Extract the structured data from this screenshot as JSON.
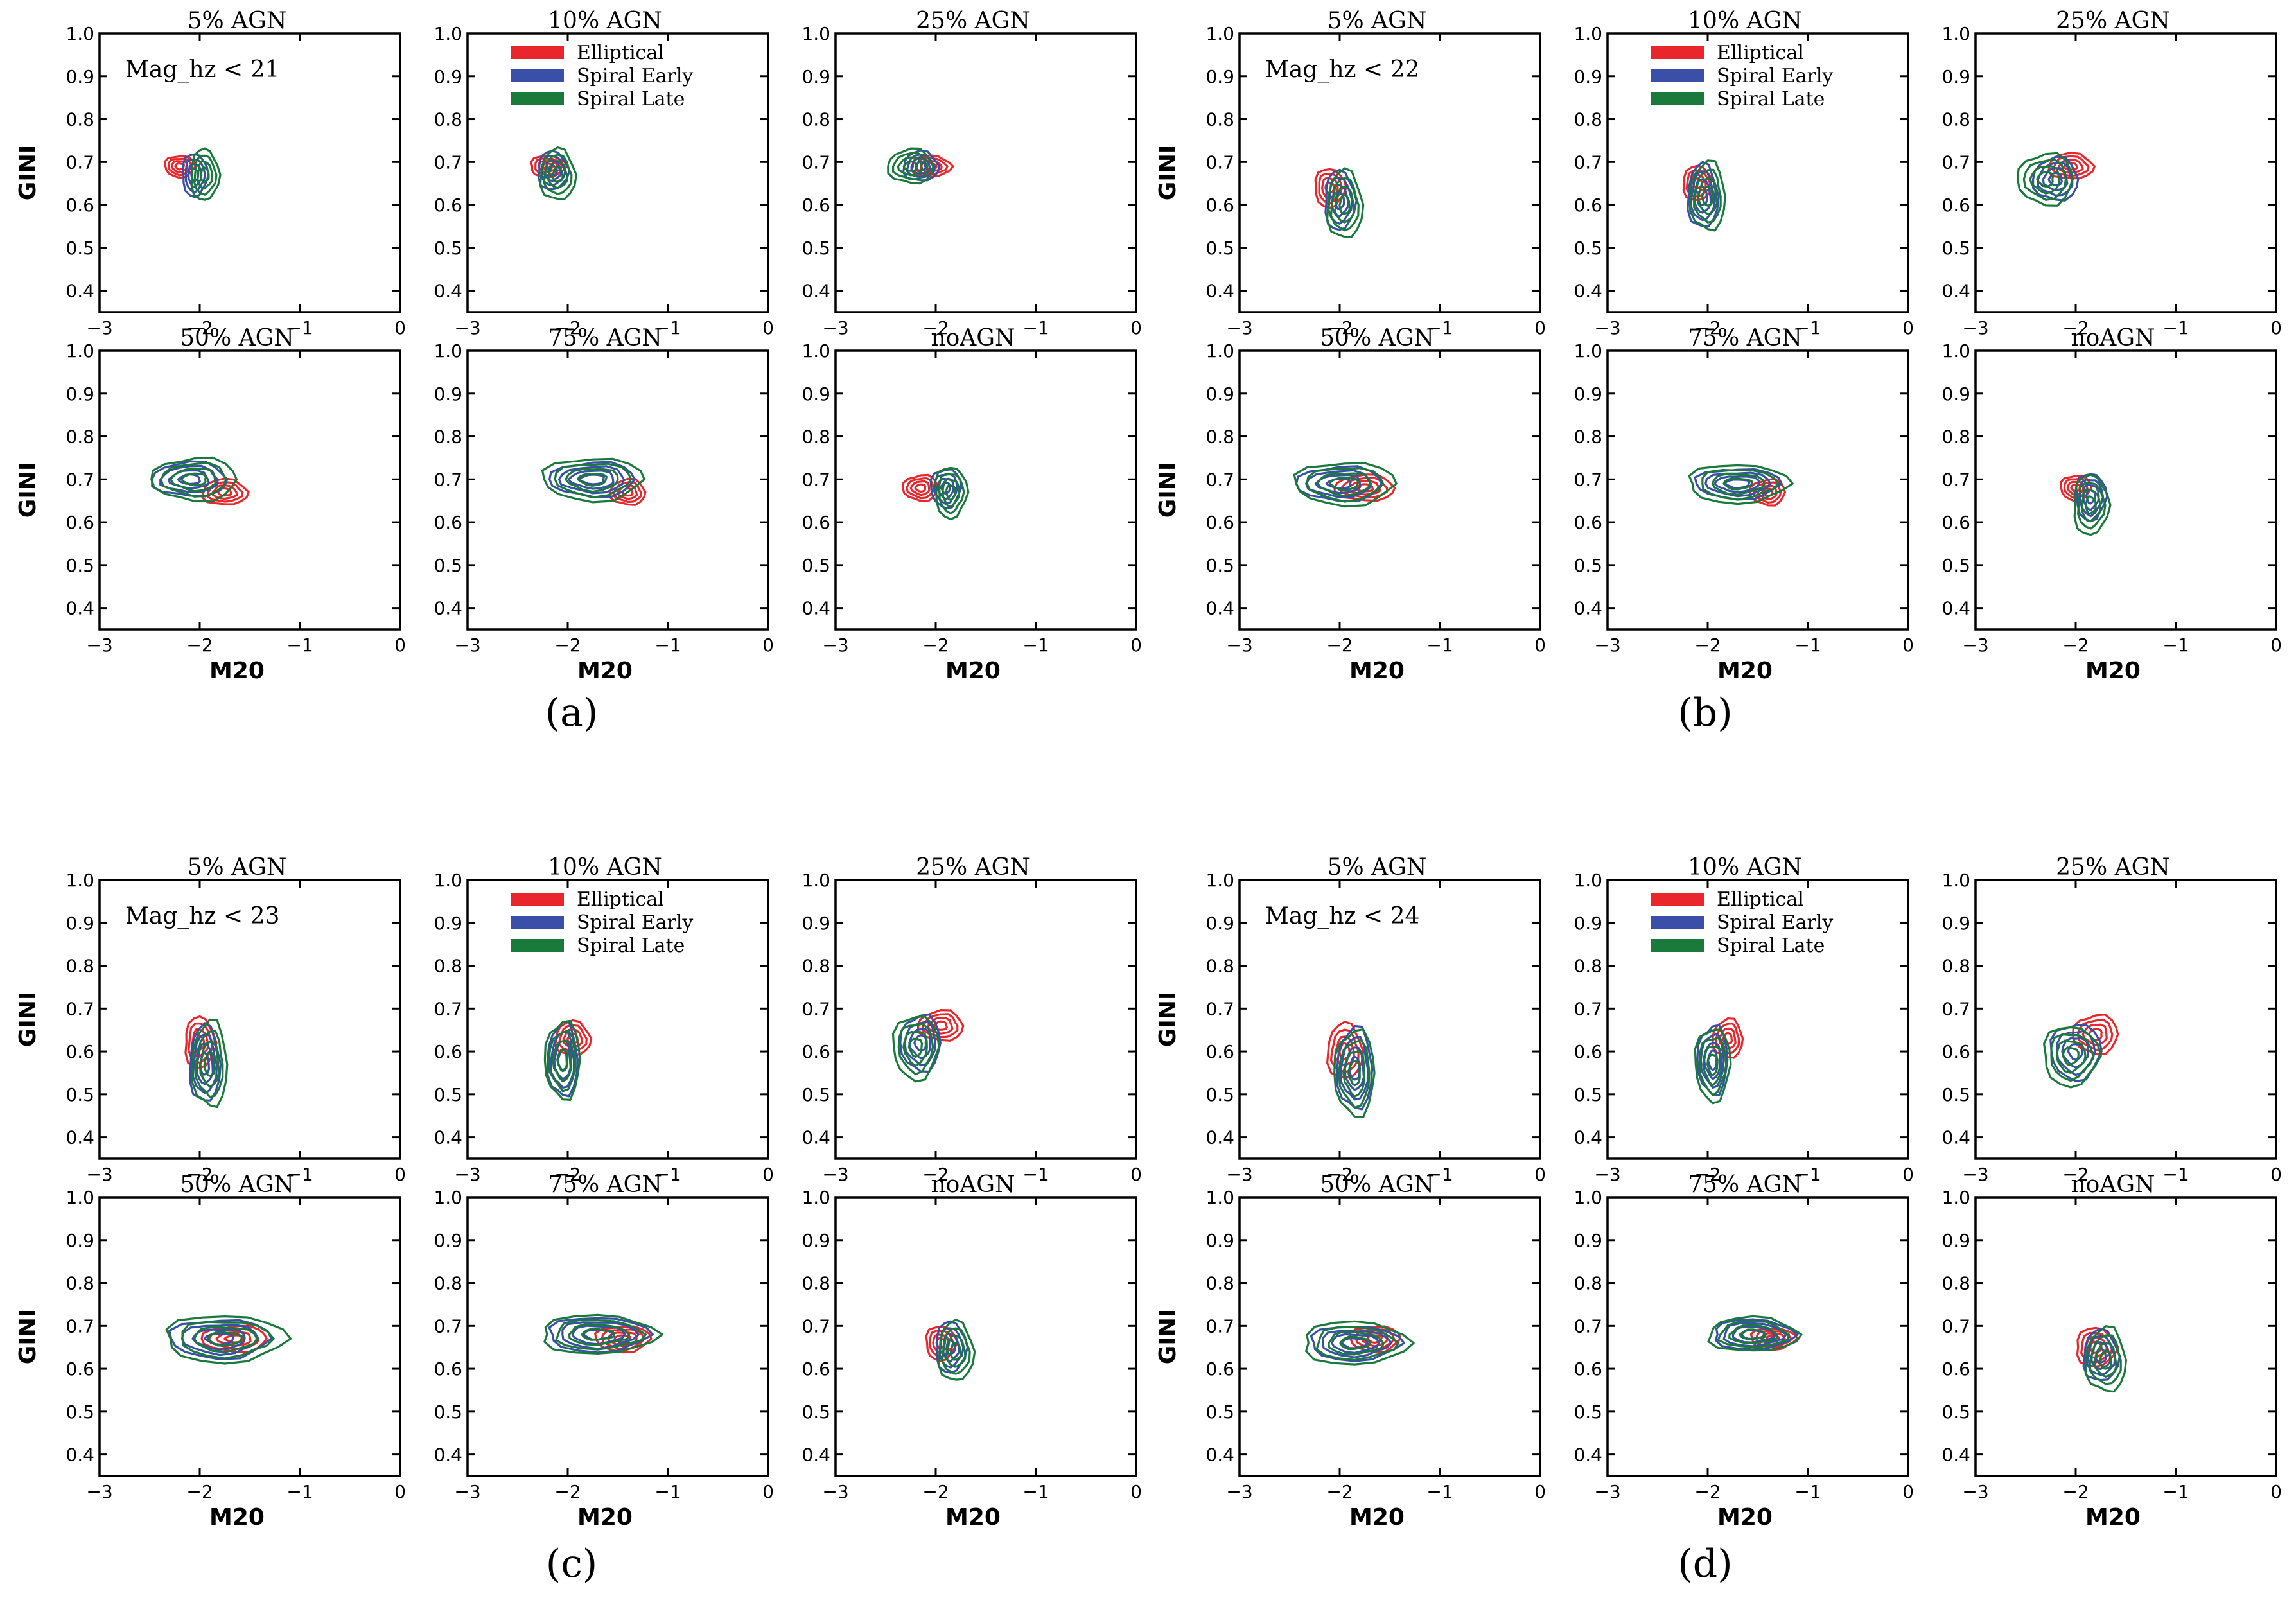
{
  "figure": {
    "groups": [
      {
        "label": "(a)",
        "annotation": "Mag_hz < 21"
      },
      {
        "label": "(b)",
        "annotation": "Mag_hz < 22"
      },
      {
        "label": "(c)",
        "annotation": "Mag_hz < 23"
      },
      {
        "label": "(d)",
        "annotation": "Mag_hz < 24"
      }
    ],
    "panel_titles": [
      "5% AGN",
      "10% AGN",
      "25% AGN",
      "50% AGN",
      "75% AGN",
      "noAGN"
    ],
    "xlabel": "M20",
    "ylabel": "GINI",
    "x_ticks": [
      "−3",
      "−2",
      "−1",
      "0"
    ],
    "y_ticks": [
      "0.4",
      "0.5",
      "0.6",
      "0.7",
      "0.8",
      "0.9",
      "1.0"
    ],
    "legend": [
      {
        "label": "Elliptical",
        "color": "#e8262b"
      },
      {
        "label": "Spiral Early",
        "color": "#3a4fa8"
      },
      {
        "label": "Spiral Late",
        "color": "#1a7a3c"
      }
    ]
  },
  "chart_data": {
    "type": "contour",
    "xlabel": "M20",
    "ylabel": "GINI",
    "xlim": [
      -3,
      0
    ],
    "ylim": [
      0.35,
      1.0
    ],
    "series_colors": {
      "Elliptical": "#e8262b",
      "Spiral Early": "#3a4fa8",
      "Spiral Late": "#1a7a3c"
    },
    "groups": [
      {
        "label": "(a)",
        "magnitude_cut": "Mag_hz < 21",
        "panels": [
          {
            "title": "5% AGN",
            "contours": {
              "Elliptical": [
                -2.2,
                0.69,
                0.3,
                0.05
              ],
              "Spiral Early": [
                -2.05,
                0.67,
                0.25,
                0.1
              ],
              "Spiral Late": [
                -1.95,
                0.67,
                0.28,
                0.12
              ]
            }
          },
          {
            "title": "10% AGN",
            "contours": {
              "Elliptical": [
                -2.2,
                0.69,
                0.35,
                0.05
              ],
              "Spiral Early": [
                -2.15,
                0.68,
                0.3,
                0.09
              ],
              "Spiral Late": [
                -2.1,
                0.67,
                0.35,
                0.12
              ]
            }
          },
          {
            "title": "25% AGN",
            "contours": {
              "Elliptical": [
                -2.05,
                0.69,
                0.4,
                0.05
              ],
              "Spiral Early": [
                -2.15,
                0.69,
                0.35,
                0.07
              ],
              "Spiral Late": [
                -2.25,
                0.69,
                0.45,
                0.08
              ]
            }
          },
          {
            "title": "50% AGN",
            "contours": {
              "Elliptical": [
                -1.75,
                0.67,
                0.45,
                0.06
              ],
              "Spiral Early": [
                -2.1,
                0.7,
                0.75,
                0.08
              ],
              "Spiral Late": [
                -2.05,
                0.7,
                0.85,
                0.1
              ]
            }
          },
          {
            "title": "75% AGN",
            "contours": {
              "Elliptical": [
                -1.4,
                0.67,
                0.35,
                0.06
              ],
              "Spiral Early": [
                -1.75,
                0.7,
                0.85,
                0.08
              ],
              "Spiral Late": [
                -1.75,
                0.7,
                1.0,
                0.1
              ]
            }
          },
          {
            "title": "noAGN",
            "contours": {
              "Elliptical": [
                -2.15,
                0.68,
                0.35,
                0.06
              ],
              "Spiral Early": [
                -1.9,
                0.68,
                0.3,
                0.09
              ],
              "Spiral Late": [
                -1.85,
                0.67,
                0.32,
                0.12
              ]
            }
          }
        ]
      },
      {
        "label": "(b)",
        "magnitude_cut": "Mag_hz < 22",
        "panels": [
          {
            "title": "5% AGN",
            "contours": {
              "Elliptical": [
                -2.1,
                0.64,
                0.3,
                0.09
              ],
              "Spiral Early": [
                -2.0,
                0.61,
                0.3,
                0.14
              ],
              "Spiral Late": [
                -1.95,
                0.6,
                0.35,
                0.16
              ]
            }
          },
          {
            "title": "10% AGN",
            "contours": {
              "Elliptical": [
                -2.1,
                0.65,
                0.3,
                0.08
              ],
              "Spiral Early": [
                -2.05,
                0.62,
                0.3,
                0.15
              ],
              "Spiral Late": [
                -2.0,
                0.62,
                0.35,
                0.16
              ]
            }
          },
          {
            "title": "25% AGN",
            "contours": {
              "Elliptical": [
                -2.05,
                0.69,
                0.45,
                0.06
              ],
              "Spiral Early": [
                -2.2,
                0.66,
                0.45,
                0.1
              ],
              "Spiral Late": [
                -2.3,
                0.66,
                0.55,
                0.12
              ]
            }
          },
          {
            "title": "50% AGN",
            "contours": {
              "Elliptical": [
                -1.75,
                0.68,
                0.6,
                0.06
              ],
              "Spiral Early": [
                -2.0,
                0.69,
                0.85,
                0.08
              ],
              "Spiral Late": [
                -1.95,
                0.69,
                1.0,
                0.1
              ]
            }
          },
          {
            "title": "75% AGN",
            "contours": {
              "Elliptical": [
                -1.4,
                0.67,
                0.35,
                0.06
              ],
              "Spiral Early": [
                -1.7,
                0.69,
                0.85,
                0.07
              ],
              "Spiral Late": [
                -1.7,
                0.69,
                1.0,
                0.09
              ]
            }
          },
          {
            "title": "noAGN",
            "contours": {
              "Elliptical": [
                -2.0,
                0.68,
                0.3,
                0.06
              ],
              "Spiral Early": [
                -1.85,
                0.66,
                0.3,
                0.11
              ],
              "Spiral Late": [
                -1.85,
                0.64,
                0.35,
                0.14
              ]
            }
          }
        ]
      },
      {
        "label": "(c)",
        "magnitude_cut": "Mag_hz < 23",
        "panels": [
          {
            "title": "5% AGN",
            "contours": {
              "Elliptical": [
                -2.0,
                0.62,
                0.3,
                0.12
              ],
              "Spiral Early": [
                -1.95,
                0.57,
                0.3,
                0.18
              ],
              "Spiral Late": [
                -1.9,
                0.57,
                0.35,
                0.2
              ]
            }
          },
          {
            "title": "10% AGN",
            "contours": {
              "Elliptical": [
                -1.95,
                0.63,
                0.35,
                0.08
              ],
              "Spiral Early": [
                -2.05,
                0.58,
                0.3,
                0.17
              ],
              "Spiral Late": [
                -2.05,
                0.58,
                0.35,
                0.18
              ]
            }
          },
          {
            "title": "25% AGN",
            "contours": {
              "Elliptical": [
                -1.95,
                0.66,
                0.45,
                0.07
              ],
              "Spiral Early": [
                -2.15,
                0.62,
                0.4,
                0.13
              ],
              "Spiral Late": [
                -2.2,
                0.61,
                0.45,
                0.15
              ]
            }
          },
          {
            "title": "50% AGN",
            "contours": {
              "Elliptical": [
                -1.65,
                0.67,
                0.65,
                0.06
              ],
              "Spiral Early": [
                -1.8,
                0.67,
                1.0,
                0.09
              ],
              "Spiral Late": [
                -1.75,
                0.67,
                1.2,
                0.11
              ]
            }
          },
          {
            "title": "75% AGN",
            "contours": {
              "Elliptical": [
                -1.45,
                0.67,
                0.55,
                0.06
              ],
              "Spiral Early": [
                -1.7,
                0.68,
                1.0,
                0.08
              ],
              "Spiral Late": [
                -1.7,
                0.68,
                1.15,
                0.09
              ]
            }
          },
          {
            "title": "noAGN",
            "contours": {
              "Elliptical": [
                -1.95,
                0.66,
                0.3,
                0.08
              ],
              "Spiral Early": [
                -1.85,
                0.65,
                0.3,
                0.12
              ],
              "Spiral Late": [
                -1.8,
                0.64,
                0.35,
                0.14
              ]
            }
          }
        ]
      },
      {
        "label": "(d)",
        "magnitude_cut": "Mag_hz < 24",
        "panels": [
          {
            "title": "5% AGN",
            "contours": {
              "Elliptical": [
                -1.95,
                0.6,
                0.35,
                0.13
              ],
              "Spiral Early": [
                -1.85,
                0.56,
                0.35,
                0.19
              ],
              "Spiral Late": [
                -1.85,
                0.55,
                0.4,
                0.2
              ]
            }
          },
          {
            "title": "10% AGN",
            "contours": {
              "Elliptical": [
                -1.8,
                0.63,
                0.3,
                0.09
              ],
              "Spiral Early": [
                -1.95,
                0.58,
                0.3,
                0.16
              ],
              "Spiral Late": [
                -1.95,
                0.57,
                0.35,
                0.17
              ]
            }
          },
          {
            "title": "25% AGN",
            "contours": {
              "Elliptical": [
                -1.8,
                0.64,
                0.45,
                0.09
              ],
              "Spiral Early": [
                -2.0,
                0.6,
                0.5,
                0.13
              ],
              "Spiral Late": [
                -2.05,
                0.59,
                0.55,
                0.14
              ]
            }
          },
          {
            "title": "50% AGN",
            "contours": {
              "Elliptical": [
                -1.65,
                0.67,
                0.5,
                0.06
              ],
              "Spiral Early": [
                -1.85,
                0.66,
                0.9,
                0.08
              ],
              "Spiral Late": [
                -1.85,
                0.66,
                1.05,
                0.1
              ]
            }
          },
          {
            "title": "75% AGN",
            "contours": {
              "Elliptical": [
                -1.35,
                0.67,
                0.45,
                0.05
              ],
              "Spiral Early": [
                -1.55,
                0.68,
                0.8,
                0.07
              ],
              "Spiral Late": [
                -1.55,
                0.68,
                0.9,
                0.08
              ]
            }
          },
          {
            "title": "noAGN",
            "contours": {
              "Elliptical": [
                -1.8,
                0.65,
                0.4,
                0.09
              ],
              "Spiral Early": [
                -1.75,
                0.63,
                0.35,
                0.12
              ],
              "Spiral Late": [
                -1.7,
                0.62,
                0.4,
                0.15
              ]
            }
          }
        ]
      }
    ]
  }
}
